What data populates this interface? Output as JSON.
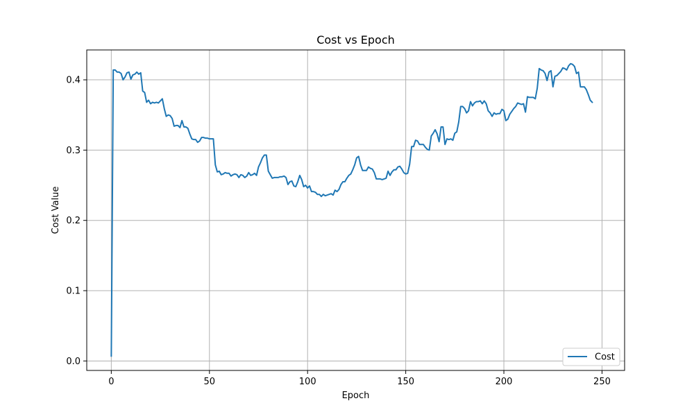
{
  "chart_data": {
    "type": "line",
    "title": "Cost vs Epoch",
    "xlabel": "Epoch",
    "ylabel": "Cost Value",
    "xlim": [
      -12.5,
      261.5
    ],
    "ylim": [
      -0.0135,
      0.4425
    ],
    "xticks": [
      0,
      50,
      100,
      150,
      200,
      250
    ],
    "yticks": [
      0.0,
      0.1,
      0.2,
      0.3,
      0.4
    ],
    "xtick_labels": [
      "0",
      "50",
      "100",
      "150",
      "200",
      "250"
    ],
    "ytick_labels": [
      "0.0",
      "0.1",
      "0.2",
      "0.3",
      "0.4"
    ],
    "grid": true,
    "legend_position": "lower-right",
    "series": [
      {
        "name": "Cost",
        "color": "#1f77b4",
        "x_start": 0,
        "x_step": 1,
        "values": [
          0.007,
          0.414,
          0.414,
          0.411,
          0.411,
          0.409,
          0.4,
          0.404,
          0.41,
          0.411,
          0.401,
          0.407,
          0.408,
          0.411,
          0.408,
          0.41,
          0.384,
          0.382,
          0.368,
          0.371,
          0.366,
          0.368,
          0.367,
          0.368,
          0.367,
          0.37,
          0.373,
          0.359,
          0.348,
          0.35,
          0.349,
          0.345,
          0.334,
          0.335,
          0.335,
          0.332,
          0.342,
          0.333,
          0.333,
          0.331,
          0.323,
          0.316,
          0.315,
          0.315,
          0.311,
          0.313,
          0.318,
          0.318,
          0.317,
          0.317,
          0.316,
          0.316,
          0.316,
          0.279,
          0.269,
          0.27,
          0.265,
          0.266,
          0.268,
          0.267,
          0.267,
          0.263,
          0.265,
          0.266,
          0.265,
          0.261,
          0.265,
          0.264,
          0.261,
          0.263,
          0.268,
          0.264,
          0.265,
          0.267,
          0.264,
          0.276,
          0.282,
          0.289,
          0.293,
          0.293,
          0.27,
          0.265,
          0.26,
          0.261,
          0.261,
          0.261,
          0.262,
          0.262,
          0.263,
          0.261,
          0.251,
          0.255,
          0.256,
          0.249,
          0.248,
          0.255,
          0.264,
          0.258,
          0.248,
          0.25,
          0.246,
          0.249,
          0.241,
          0.241,
          0.24,
          0.237,
          0.237,
          0.234,
          0.237,
          0.235,
          0.236,
          0.237,
          0.238,
          0.236,
          0.243,
          0.241,
          0.244,
          0.251,
          0.255,
          0.255,
          0.26,
          0.264,
          0.266,
          0.272,
          0.279,
          0.289,
          0.291,
          0.279,
          0.271,
          0.271,
          0.271,
          0.276,
          0.274,
          0.273,
          0.268,
          0.259,
          0.259,
          0.259,
          0.258,
          0.259,
          0.26,
          0.27,
          0.264,
          0.269,
          0.272,
          0.272,
          0.276,
          0.277,
          0.273,
          0.268,
          0.266,
          0.267,
          0.28,
          0.305,
          0.305,
          0.314,
          0.313,
          0.308,
          0.308,
          0.308,
          0.304,
          0.301,
          0.3,
          0.32,
          0.324,
          0.329,
          0.323,
          0.312,
          0.333,
          0.333,
          0.308,
          0.316,
          0.315,
          0.316,
          0.314,
          0.324,
          0.326,
          0.34,
          0.362,
          0.362,
          0.359,
          0.353,
          0.356,
          0.369,
          0.363,
          0.367,
          0.369,
          0.369,
          0.37,
          0.366,
          0.37,
          0.366,
          0.356,
          0.353,
          0.348,
          0.353,
          0.351,
          0.352,
          0.352,
          0.358,
          0.356,
          0.342,
          0.344,
          0.351,
          0.355,
          0.359,
          0.362,
          0.367,
          0.366,
          0.365,
          0.366,
          0.354,
          0.376,
          0.375,
          0.375,
          0.375,
          0.373,
          0.388,
          0.416,
          0.414,
          0.413,
          0.409,
          0.399,
          0.411,
          0.413,
          0.39,
          0.405,
          0.406,
          0.409,
          0.412,
          0.417,
          0.416,
          0.414,
          0.42,
          0.423,
          0.422,
          0.419,
          0.409,
          0.411,
          0.39,
          0.39,
          0.39,
          0.386,
          0.379,
          0.371,
          0.368
        ]
      }
    ]
  }
}
